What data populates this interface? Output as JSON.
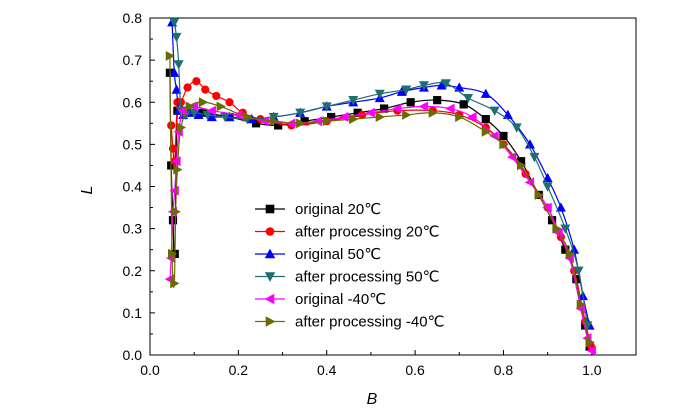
{
  "chart_data": {
    "type": "line",
    "xlabel": "B",
    "ylabel": "L",
    "xlim": [
      0.0,
      1.1
    ],
    "ylim": [
      0.0,
      0.8
    ],
    "xticks": [
      "0.0",
      "0.2",
      "0.4",
      "0.6",
      "0.8",
      "1.0"
    ],
    "yticks": [
      "0.0",
      "0.1",
      "0.2",
      "0.3",
      "0.4",
      "0.5",
      "0.6",
      "0.7",
      "0.8"
    ],
    "grid": false,
    "legend_position": "center",
    "series": [
      {
        "name": "original 20℃",
        "color": "#000000",
        "marker": "square",
        "x": [
          0.045,
          0.048,
          0.052,
          0.056,
          0.062,
          0.08,
          0.12,
          0.18,
          0.24,
          0.29,
          0.35,
          0.41,
          0.47,
          0.53,
          0.59,
          0.65,
          0.71,
          0.76,
          0.8,
          0.84,
          0.88,
          0.91,
          0.94,
          0.965,
          0.985,
          0.995
        ],
        "y": [
          0.67,
          0.45,
          0.32,
          0.24,
          0.58,
          0.58,
          0.575,
          0.565,
          0.55,
          0.545,
          0.555,
          0.565,
          0.575,
          0.585,
          0.6,
          0.605,
          0.595,
          0.56,
          0.52,
          0.46,
          0.38,
          0.32,
          0.25,
          0.18,
          0.07,
          0.02
        ]
      },
      {
        "name": "after processing 20℃",
        "color": "#ff0000",
        "marker": "circle",
        "x": [
          0.048,
          0.052,
          0.056,
          0.062,
          0.07,
          0.085,
          0.105,
          0.125,
          0.15,
          0.18,
          0.21,
          0.25,
          0.32,
          0.4,
          0.48,
          0.56,
          0.64,
          0.7,
          0.76,
          0.8,
          0.85,
          0.9,
          0.93,
          0.96,
          0.985,
          0.998
        ],
        "y": [
          0.545,
          0.49,
          0.46,
          0.6,
          0.6,
          0.635,
          0.65,
          0.63,
          0.615,
          0.6,
          0.575,
          0.56,
          0.545,
          0.555,
          0.57,
          0.58,
          0.58,
          0.57,
          0.54,
          0.5,
          0.43,
          0.35,
          0.28,
          0.2,
          0.08,
          0.02
        ]
      },
      {
        "name": "original 50℃",
        "color": "#0000ff",
        "marker": "triangle-up",
        "x": [
          0.05,
          0.055,
          0.06,
          0.065,
          0.075,
          0.09,
          0.11,
          0.14,
          0.18,
          0.23,
          0.28,
          0.34,
          0.4,
          0.46,
          0.52,
          0.57,
          0.62,
          0.66,
          0.7,
          0.76,
          0.81,
          0.86,
          0.9,
          0.93,
          0.96,
          0.98,
          0.995
        ],
        "y": [
          0.79,
          0.67,
          0.63,
          0.58,
          0.57,
          0.575,
          0.57,
          0.565,
          0.565,
          0.56,
          0.565,
          0.575,
          0.59,
          0.6,
          0.61,
          0.625,
          0.635,
          0.64,
          0.635,
          0.62,
          0.57,
          0.5,
          0.42,
          0.35,
          0.25,
          0.14,
          0.07
        ]
      },
      {
        "name": "after processing 50℃",
        "color": "#1f6f6f",
        "marker": "triangle-down",
        "x": [
          0.055,
          0.06,
          0.065,
          0.07,
          0.08,
          0.1,
          0.13,
          0.17,
          0.22,
          0.28,
          0.34,
          0.4,
          0.46,
          0.52,
          0.58,
          0.62,
          0.67,
          0.72,
          0.78,
          0.83,
          0.87,
          0.9,
          0.94,
          0.97,
          0.99
        ],
        "y": [
          0.79,
          0.755,
          0.69,
          0.58,
          0.57,
          0.575,
          0.57,
          0.565,
          0.56,
          0.565,
          0.575,
          0.59,
          0.605,
          0.62,
          0.63,
          0.64,
          0.645,
          0.61,
          0.58,
          0.54,
          0.47,
          0.4,
          0.3,
          0.2,
          0.07
        ]
      },
      {
        "name": "original -40℃",
        "color": "#ff00ff",
        "marker": "triangle-left",
        "x": [
          0.045,
          0.048,
          0.052,
          0.056,
          0.06,
          0.065,
          0.075,
          0.1,
          0.14,
          0.2,
          0.26,
          0.32,
          0.38,
          0.44,
          0.5,
          0.56,
          0.62,
          0.68,
          0.73,
          0.78,
          0.82,
          0.86,
          0.9,
          0.925,
          0.95,
          0.975,
          0.99,
          1.0
        ],
        "y": [
          0.18,
          0.23,
          0.34,
          0.39,
          0.46,
          0.53,
          0.58,
          0.59,
          0.58,
          0.57,
          0.555,
          0.55,
          0.555,
          0.565,
          0.575,
          0.585,
          0.59,
          0.585,
          0.565,
          0.52,
          0.47,
          0.41,
          0.35,
          0.29,
          0.23,
          0.11,
          0.04,
          0.01
        ]
      },
      {
        "name": "after processing -40℃",
        "color": "#6b6b00",
        "marker": "triangle-right",
        "x": [
          0.045,
          0.05,
          0.055,
          0.058,
          0.062,
          0.07,
          0.09,
          0.12,
          0.16,
          0.22,
          0.28,
          0.34,
          0.4,
          0.46,
          0.52,
          0.58,
          0.64,
          0.7,
          0.76,
          0.8,
          0.84,
          0.88,
          0.92,
          0.95,
          0.975,
          0.995
        ],
        "y": [
          0.71,
          0.24,
          0.17,
          0.34,
          0.44,
          0.54,
          0.59,
          0.6,
          0.59,
          0.565,
          0.555,
          0.55,
          0.555,
          0.56,
          0.565,
          0.57,
          0.575,
          0.565,
          0.53,
          0.5,
          0.45,
          0.38,
          0.3,
          0.24,
          0.12,
          0.03
        ]
      }
    ]
  }
}
